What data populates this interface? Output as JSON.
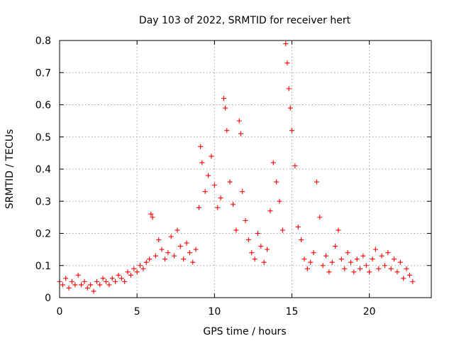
{
  "chart_data": {
    "type": "scatter",
    "title": "Day 103 of 2022, SRMTID for receiver hert",
    "xlabel": "GPS time / hours",
    "ylabel": "SRMTID / TECUs",
    "xlim": [
      0,
      24
    ],
    "ylim": [
      0,
      0.8
    ],
    "x_ticks": [
      0,
      5,
      10,
      15,
      20
    ],
    "x_tick_labels": [
      "0",
      "5",
      "10",
      "15",
      "20"
    ],
    "y_ticks": [
      0,
      0.1,
      0.2,
      0.3,
      0.4,
      0.5,
      0.6,
      0.7,
      0.8
    ],
    "y_tick_labels": [
      "0",
      "0.1",
      "0.2",
      "0.3",
      "0.4",
      "0.5",
      "0.6",
      "0.7",
      "0.8"
    ],
    "grid": true,
    "marker": "+",
    "color": "#ff0000",
    "series": [
      {
        "name": "SRMTID",
        "points": [
          [
            0.0,
            0.05
          ],
          [
            0.2,
            0.04
          ],
          [
            0.4,
            0.06
          ],
          [
            0.6,
            0.03
          ],
          [
            0.8,
            0.05
          ],
          [
            1.0,
            0.04
          ],
          [
            1.2,
            0.07
          ],
          [
            1.4,
            0.04
          ],
          [
            1.6,
            0.05
          ],
          [
            1.8,
            0.03
          ],
          [
            2.0,
            0.04
          ],
          [
            2.2,
            0.02
          ],
          [
            2.4,
            0.05
          ],
          [
            2.6,
            0.04
          ],
          [
            2.8,
            0.06
          ],
          [
            3.0,
            0.05
          ],
          [
            3.2,
            0.04
          ],
          [
            3.4,
            0.06
          ],
          [
            3.6,
            0.05
          ],
          [
            3.8,
            0.07
          ],
          [
            4.0,
            0.06
          ],
          [
            4.2,
            0.05
          ],
          [
            4.4,
            0.08
          ],
          [
            4.6,
            0.07
          ],
          [
            4.8,
            0.09
          ],
          [
            5.0,
            0.08
          ],
          [
            5.2,
            0.1
          ],
          [
            5.4,
            0.09
          ],
          [
            5.6,
            0.11
          ],
          [
            5.8,
            0.12
          ],
          [
            5.9,
            0.26
          ],
          [
            6.0,
            0.25
          ],
          [
            6.2,
            0.13
          ],
          [
            6.4,
            0.18
          ],
          [
            6.6,
            0.15
          ],
          [
            6.8,
            0.12
          ],
          [
            7.0,
            0.14
          ],
          [
            7.2,
            0.19
          ],
          [
            7.4,
            0.13
          ],
          [
            7.6,
            0.21
          ],
          [
            7.8,
            0.16
          ],
          [
            8.0,
            0.12
          ],
          [
            8.2,
            0.17
          ],
          [
            8.4,
            0.14
          ],
          [
            8.6,
            0.11
          ],
          [
            8.8,
            0.15
          ],
          [
            9.0,
            0.28
          ],
          [
            9.1,
            0.47
          ],
          [
            9.2,
            0.42
          ],
          [
            9.4,
            0.33
          ],
          [
            9.6,
            0.38
          ],
          [
            9.8,
            0.44
          ],
          [
            10.0,
            0.35
          ],
          [
            10.2,
            0.28
          ],
          [
            10.4,
            0.31
          ],
          [
            10.6,
            0.62
          ],
          [
            10.7,
            0.59
          ],
          [
            10.8,
            0.52
          ],
          [
            11.0,
            0.36
          ],
          [
            11.2,
            0.29
          ],
          [
            11.4,
            0.21
          ],
          [
            11.6,
            0.55
          ],
          [
            11.7,
            0.51
          ],
          [
            11.8,
            0.33
          ],
          [
            12.0,
            0.24
          ],
          [
            12.2,
            0.18
          ],
          [
            12.4,
            0.14
          ],
          [
            12.6,
            0.12
          ],
          [
            12.8,
            0.2
          ],
          [
            13.0,
            0.16
          ],
          [
            13.2,
            0.11
          ],
          [
            13.4,
            0.15
          ],
          [
            13.6,
            0.27
          ],
          [
            13.8,
            0.42
          ],
          [
            14.0,
            0.36
          ],
          [
            14.2,
            0.3
          ],
          [
            14.4,
            0.21
          ],
          [
            14.6,
            0.79
          ],
          [
            14.7,
            0.73
          ],
          [
            14.8,
            0.65
          ],
          [
            14.9,
            0.59
          ],
          [
            15.0,
            0.52
          ],
          [
            15.2,
            0.41
          ],
          [
            15.4,
            0.22
          ],
          [
            15.6,
            0.18
          ],
          [
            15.8,
            0.12
          ],
          [
            16.0,
            0.09
          ],
          [
            16.2,
            0.11
          ],
          [
            16.4,
            0.14
          ],
          [
            16.6,
            0.36
          ],
          [
            16.8,
            0.25
          ],
          [
            17.0,
            0.1
          ],
          [
            17.2,
            0.13
          ],
          [
            17.4,
            0.08
          ],
          [
            17.6,
            0.11
          ],
          [
            17.8,
            0.16
          ],
          [
            18.0,
            0.21
          ],
          [
            18.2,
            0.12
          ],
          [
            18.4,
            0.09
          ],
          [
            18.6,
            0.14
          ],
          [
            18.8,
            0.11
          ],
          [
            19.0,
            0.08
          ],
          [
            19.2,
            0.12
          ],
          [
            19.4,
            0.09
          ],
          [
            19.6,
            0.13
          ],
          [
            19.8,
            0.1
          ],
          [
            20.0,
            0.08
          ],
          [
            20.2,
            0.12
          ],
          [
            20.4,
            0.15
          ],
          [
            20.6,
            0.09
          ],
          [
            20.8,
            0.13
          ],
          [
            21.0,
            0.1
          ],
          [
            21.2,
            0.14
          ],
          [
            21.4,
            0.09
          ],
          [
            21.6,
            0.12
          ],
          [
            21.8,
            0.08
          ],
          [
            22.0,
            0.11
          ],
          [
            22.2,
            0.06
          ],
          [
            22.4,
            0.09
          ],
          [
            22.6,
            0.07
          ],
          [
            22.8,
            0.05
          ]
        ]
      }
    ]
  }
}
